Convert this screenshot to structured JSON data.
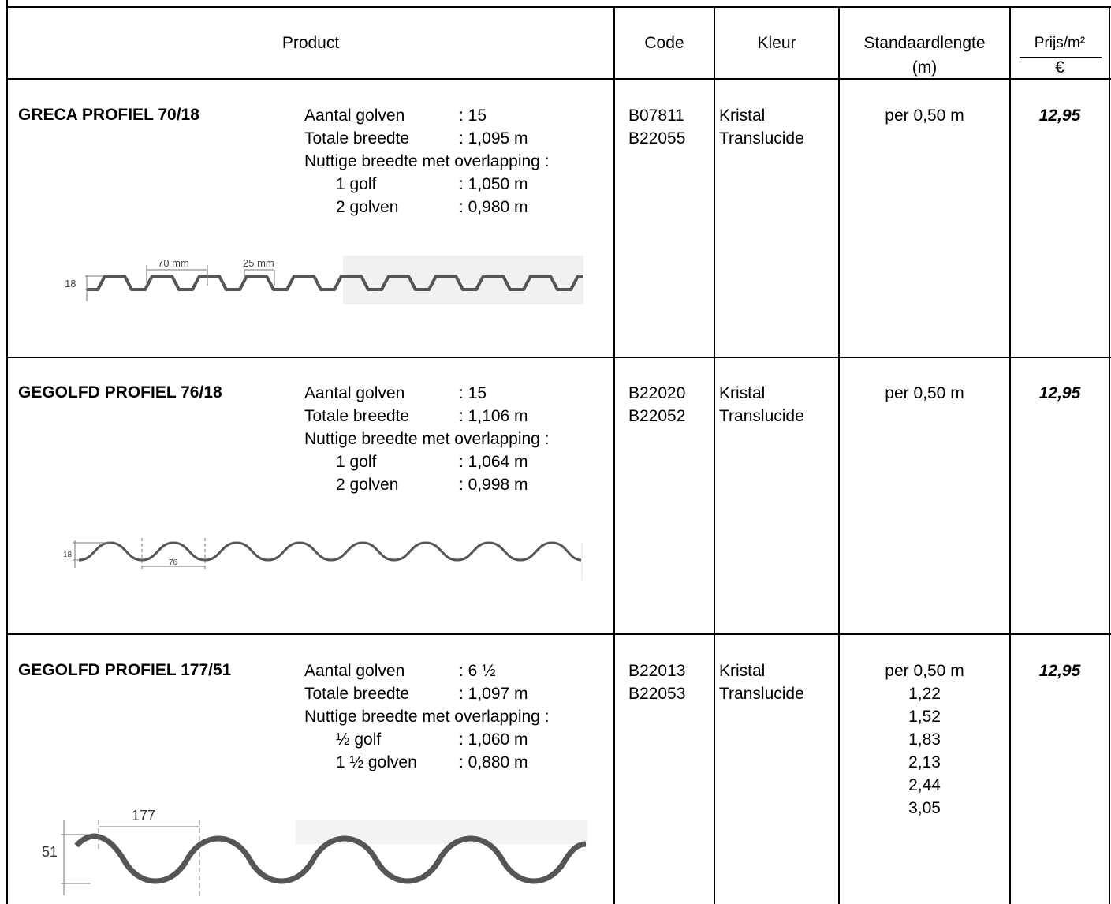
{
  "header": {
    "product": "Product",
    "code": "Code",
    "kleur": "Kleur",
    "lengte_line1": "Standaardlengte",
    "lengte_line2": "(m)",
    "prijs_line1": "Prijs/m²",
    "prijs_line2": "€"
  },
  "rows": [
    {
      "name": "GRECA PROFIEL 70/18",
      "specs": {
        "aantal_label": "Aantal golven",
        "aantal_value": ": 15",
        "breedte_label": "Totale breedte",
        "breedte_value": ": 1,095 m",
        "nuttig_label": "Nuttige breedte met overlapping :",
        "sub1_label": "1 golf",
        "sub1_value": ": 1,050 m",
        "sub2_label": "2 golven",
        "sub2_value": ": 0,980 m"
      },
      "codes": [
        "B07811",
        "B22055"
      ],
      "kleur": [
        "Kristal",
        "Translucide"
      ],
      "lengte": [
        "per 0,50 m"
      ],
      "prijs": "12,95",
      "diagram": {
        "height": "18",
        "pitch": "70 mm",
        "crest": "25 mm"
      }
    },
    {
      "name": "GEGOLFD PROFIEL 76/18",
      "specs": {
        "aantal_label": "Aantal golven",
        "aantal_value": ": 15",
        "breedte_label": "Totale breedte",
        "breedte_value": ": 1,106 m",
        "nuttig_label": "Nuttige breedte met overlapping :",
        "sub1_label": "1 golf",
        "sub1_value": ": 1,064 m",
        "sub2_label": "2 golven",
        "sub2_value": ": 0,998 m"
      },
      "codes": [
        "B22020",
        "B22052"
      ],
      "kleur": [
        "Kristal",
        "Translucide"
      ],
      "lengte": [
        "per 0,50 m"
      ],
      "prijs": "12,95",
      "diagram": {
        "height": "18",
        "pitch": "76"
      }
    },
    {
      "name": "GEGOLFD PROFIEL 177/51",
      "specs": {
        "aantal_label": "Aantal golven",
        "aantal_value": ": 6 ½",
        "breedte_label": "Totale breedte",
        "breedte_value": ": 1,097 m",
        "nuttig_label": "Nuttige breedte met overlapping :",
        "sub1_label": "½ golf",
        "sub1_value": ": 1,060 m",
        "sub2_label": "1 ½ golven",
        "sub2_value": ": 0,880 m"
      },
      "codes": [
        "B22013",
        "B22053"
      ],
      "kleur": [
        "Kristal",
        "Translucide"
      ],
      "lengte": [
        "per 0,50 m",
        "1,22",
        "1,52",
        "1,83",
        "2,13",
        "2,44",
        "3,05"
      ],
      "prijs": "12,95",
      "diagram": {
        "height": "51",
        "pitch": "177"
      }
    }
  ]
}
